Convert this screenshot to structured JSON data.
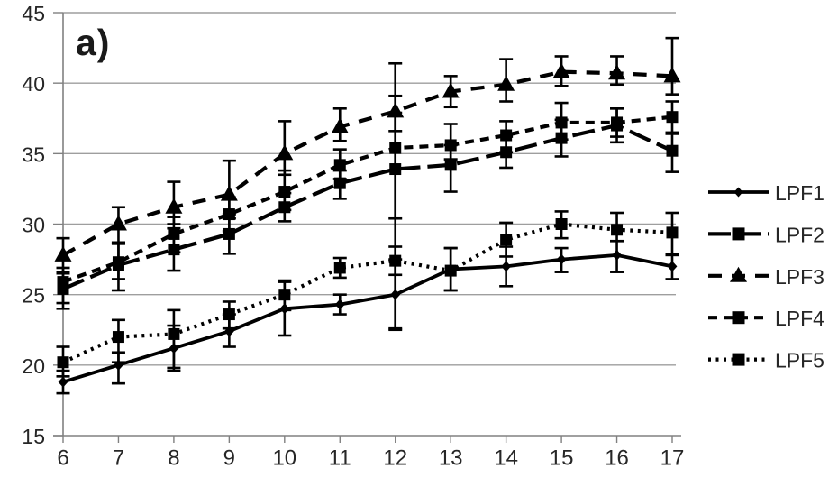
{
  "panel_label": "a)",
  "colors": {
    "series": "#000000",
    "gridline": "#9e9e9e",
    "axis": "#808080",
    "tick": "#808080",
    "label_text": "#262626",
    "background": "#ffffff"
  },
  "chart_data": {
    "type": "line",
    "title": "",
    "xlabel": "",
    "ylabel": "",
    "x": [
      6,
      7,
      8,
      9,
      10,
      11,
      12,
      13,
      14,
      15,
      16,
      17
    ],
    "yticks": [
      15,
      20,
      25,
      30,
      35,
      40,
      45
    ],
    "ylim": [
      15,
      45
    ],
    "grid": true,
    "legend_position": "right",
    "error_bars": true,
    "series": [
      {
        "name": "LPF1",
        "marker": "diamond",
        "line_style": "solid",
        "values": [
          18.8,
          20.0,
          21.2,
          22.4,
          24.0,
          24.3,
          25.0,
          26.8,
          27.0,
          27.5,
          27.8,
          27.0
        ],
        "err_plus": [
          0.8,
          0.9,
          1.6,
          1.2,
          1.9,
          0.7,
          2.5,
          1.5,
          1.4,
          0.8,
          1.0,
          0.8
        ],
        "err_minus": [
          0.8,
          1.3,
          1.6,
          1.1,
          1.9,
          0.7,
          2.4,
          1.5,
          1.4,
          0.9,
          1.2,
          0.9
        ]
      },
      {
        "name": "LPF2",
        "marker": "square",
        "line_style": "long-dash",
        "values": [
          25.4,
          27.1,
          28.2,
          29.3,
          31.2,
          32.9,
          33.9,
          34.2,
          35.1,
          36.1,
          37.0,
          35.2
        ],
        "err_plus": [
          1.2,
          1.6,
          1.5,
          1.4,
          1.0,
          0.9,
          4.0,
          1.4,
          1.1,
          1.3,
          1.2,
          1.3
        ],
        "err_minus": [
          1.4,
          1.8,
          1.5,
          1.4,
          1.0,
          1.1,
          11.4,
          1.9,
          1.1,
          1.3,
          1.2,
          1.5
        ]
      },
      {
        "name": "LPF3",
        "marker": "triangle",
        "line_style": "dash",
        "values": [
          27.8,
          30.0,
          31.2,
          32.1,
          35.0,
          36.9,
          38.0,
          39.4,
          39.9,
          40.8,
          40.7,
          40.5
        ],
        "err_plus": [
          1.2,
          1.2,
          1.8,
          2.4,
          2.3,
          1.3,
          1.1,
          1.1,
          1.8,
          1.1,
          1.2,
          2.7
        ],
        "err_minus": [
          1.3,
          1.4,
          1.2,
          1.7,
          1.5,
          1.0,
          1.4,
          1.1,
          1.2,
          1.0,
          0.8,
          1.3
        ]
      },
      {
        "name": "LPF4",
        "marker": "square",
        "line_style": "medium-dash",
        "values": [
          25.9,
          27.3,
          29.3,
          30.7,
          32.3,
          34.2,
          35.4,
          35.6,
          36.3,
          37.2,
          37.2,
          37.6
        ],
        "err_plus": [
          1.0,
          1.4,
          1.2,
          1.2,
          1.5,
          1.1,
          6.0,
          1.5,
          1.0,
          1.4,
          1.0,
          1.1
        ],
        "err_minus": [
          1.5,
          1.2,
          1.3,
          1.2,
          1.3,
          1.0,
          5.0,
          1.0,
          1.2,
          1.2,
          1.0,
          1.2
        ]
      },
      {
        "name": "LPF5",
        "marker": "square",
        "line_style": "dotted",
        "values": [
          20.2,
          22.0,
          22.2,
          23.6,
          25.0,
          26.9,
          27.4,
          26.7,
          28.9,
          30.0,
          29.6,
          29.4
        ],
        "err_plus": [
          1.1,
          1.2,
          1.7,
          0.9,
          1.0,
          0.7,
          1.0,
          1.6,
          1.2,
          0.9,
          1.2,
          1.4
        ],
        "err_minus": [
          1.0,
          1.8,
          2.4,
          1.0,
          1.1,
          0.7,
          1.0,
          1.4,
          1.2,
          1.0,
          0.8,
          1.5
        ]
      }
    ]
  }
}
